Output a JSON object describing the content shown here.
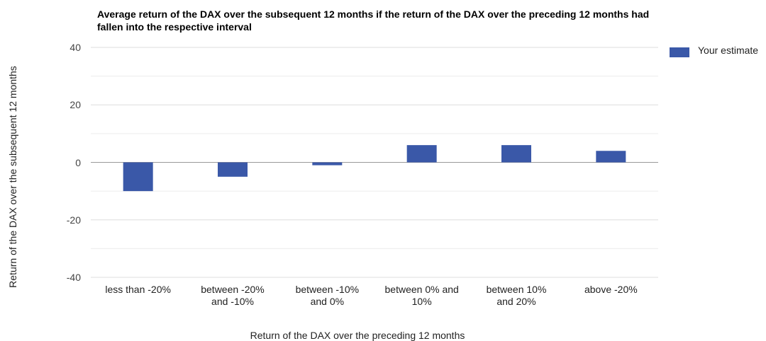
{
  "chart_data": {
    "type": "bar",
    "title": "Average return of the DAX over the subsequent 12 months if the return of the DAX over the preceding 12 months had fallen into the respective interval",
    "x_label": "Return of the DAX over the preceding 12 months",
    "y_label": "Return of the DAX over the subsequent 12 months",
    "categories": [
      "less than -20%",
      "between -20% and -10%",
      "between -10% and 0%",
      "between 0% and 10%",
      "between 10% and 20%",
      "above -20%"
    ],
    "series": [
      {
        "name": "Your estimate",
        "color": "#3a58a8",
        "values": [
          -10,
          -5,
          -1,
          6,
          6,
          4
        ]
      }
    ],
    "ylim": [
      -40,
      40
    ],
    "yticks": [
      -40,
      -20,
      0,
      20,
      40
    ],
    "minor_yticks": [
      -30,
      -10,
      10,
      30
    ],
    "grid": true,
    "legend": "right"
  }
}
